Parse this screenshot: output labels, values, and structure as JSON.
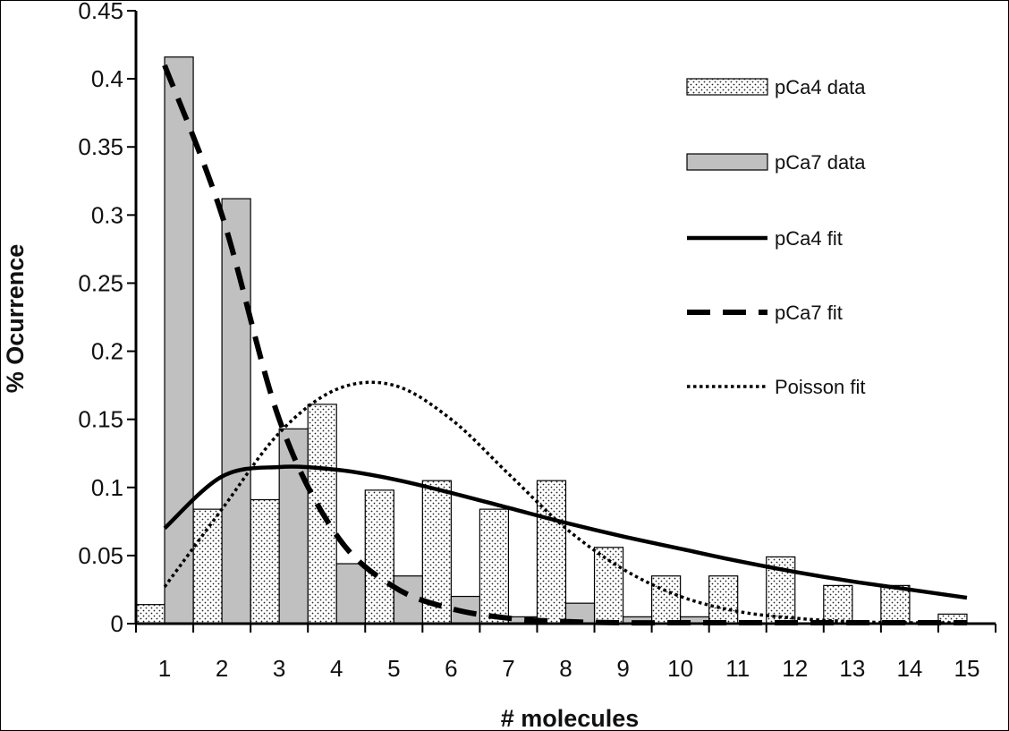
{
  "chart_data": {
    "type": "bar",
    "title": "",
    "xlabel": "# molecules",
    "ylabel": "% Ocurrence",
    "categories": [
      "1",
      "2",
      "3",
      "4",
      "5",
      "6",
      "7",
      "8",
      "9",
      "10",
      "11",
      "12",
      "13",
      "14",
      "15"
    ],
    "ylim": [
      0,
      0.45
    ],
    "yticks": [
      "0",
      "0.05",
      "0.1",
      "0.15",
      "0.2",
      "0.25",
      "0.3",
      "0.35",
      "0.4",
      "0.45"
    ],
    "legend_position": "top-right",
    "grid": false,
    "bar_series": [
      {
        "name": "pCa4 data",
        "pattern": "dotted",
        "color": "#ffffff",
        "values": [
          0.014,
          0.084,
          0.091,
          0.161,
          0.098,
          0.105,
          0.084,
          0.105,
          0.056,
          0.035,
          0.035,
          0.049,
          0.028,
          0.028,
          0.007
        ]
      },
      {
        "name": "pCa7 data",
        "pattern": "solid",
        "color": "#c0c0c0",
        "values": [
          0.416,
          0.312,
          0.143,
          0.044,
          0.035,
          0.02,
          0.005,
          0.015,
          0.005,
          0.005,
          0,
          0,
          0,
          0,
          0
        ]
      }
    ],
    "line_series": [
      {
        "name": "pCa4 fit",
        "style": "solid",
        "color": "#000000",
        "values": [
          0.07,
          0.108,
          0.115,
          0.113,
          0.106,
          0.096,
          0.085,
          0.074,
          0.064,
          0.055,
          0.046,
          0.038,
          0.031,
          0.025,
          0.019
        ]
      },
      {
        "name": "pCa7 fit",
        "style": "dashed",
        "color": "#000000",
        "values": [
          0.41,
          0.3,
          0.15,
          0.065,
          0.027,
          0.011,
          0.004,
          0.0015,
          0.0005,
          0.0002,
          0,
          0,
          0,
          0,
          0
        ]
      },
      {
        "name": "Poisson fit",
        "style": "dotted",
        "color": "#000000",
        "values": [
          0.027,
          0.084,
          0.14,
          0.172,
          0.175,
          0.15,
          0.11,
          0.07,
          0.04,
          0.02,
          0.009,
          0.004,
          0.0015,
          0.0006,
          0.0002
        ]
      }
    ]
  }
}
